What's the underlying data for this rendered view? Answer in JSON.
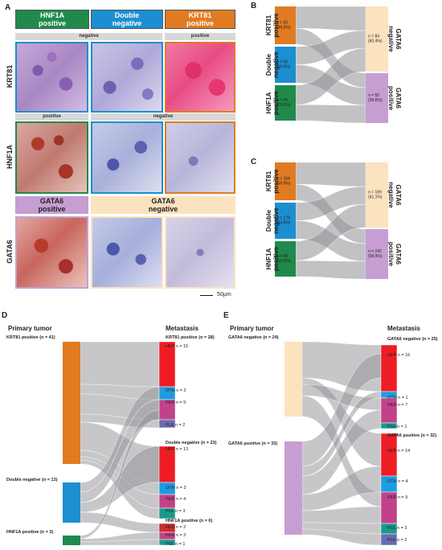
{
  "panel_A": {
    "label": "A",
    "headers": [
      "HNF1A\npositive",
      "Double\nnegative",
      "KRT81\npositive"
    ],
    "bar_negative": "negative",
    "bar_positive": "positive",
    "bar_positive_2": "positive",
    "bar_negative_2": "negative",
    "row_labels": [
      "KRT81",
      "HNF1A",
      "GATA6"
    ],
    "gata6_positive": "GATA6\npositive",
    "gata6_negative": "GATA6\nnegative",
    "scale": "50µm"
  },
  "panel_B": {
    "label": "B",
    "left": [
      {
        "name": "KRT81\npositive",
        "text": "n = 50\n(36.0%)",
        "color": "#e07b22"
      },
      {
        "name": "Double\nnegative",
        "text": "n = 50\n(36.0%)",
        "color": "#1b8fd0"
      },
      {
        "name": "HNF1A\npositive",
        "text": "n = 39\n(28.0%)",
        "color": "#1f8a4c"
      }
    ],
    "right": [
      {
        "name": "GATA6\nnegative",
        "text": "n = 84\n(60.4%)",
        "color": "#fbe3c0"
      },
      {
        "name": "GATA6\npositive",
        "text": "n = 55\n(39.6%)",
        "color": "#c69ed2"
      }
    ]
  },
  "panel_C": {
    "label": "C",
    "left": [
      {
        "name": "KRT81\npositive",
        "text": "n = 164\n(39.9%)",
        "color": "#e07b22"
      },
      {
        "name": "Double\nnegative",
        "text": "n = 179\n(43.6%)",
        "color": "#1b8fd0"
      },
      {
        "name": "HNF1A\npositive",
        "text": "n = 68\n(16.5%)",
        "color": "#1f8a4c"
      }
    ],
    "right": [
      {
        "name": "GATA6\nnegative",
        "text": "n = 169\n(41.1%)",
        "color": "#fbe3c0"
      },
      {
        "name": "GATA6\npositive",
        "text": "n = 242\n(58.9%)",
        "color": "#c69ed2"
      }
    ]
  },
  "panel_D": {
    "label": "D",
    "left_title": "Primary tumor",
    "right_title": "Metastasis",
    "left_groups": [
      "KRT81 positive (n = 41)",
      "Double negative (n = 13)",
      "HNF1A positive (n = 3)"
    ],
    "right_groups": [
      "KRT81 positive (n = 28)",
      "Double negative (n = 23)",
      "HNF1A positive (n = 6)"
    ],
    "sites": [
      "HEP n = 15",
      "OTH n = 2",
      "PER n = 9",
      "PLE n = 2",
      "HEP n = 13",
      "OTH n = 3",
      "PER n = 4",
      "PUL n = 3",
      "HEP n = 2",
      "PER n = 3",
      "PUL n = 1"
    ]
  },
  "panel_E": {
    "label": "E",
    "left_title": "Primary tumor",
    "right_title": "Metastasis",
    "left_groups": [
      "GATA6 negative (n = 24)",
      "GATA6 positive (n = 33)"
    ],
    "right_groups": [
      "GATA6 negative (n = 25)",
      "GATA6 positive (n = 32)"
    ],
    "sites": [
      "HEP n = 16",
      "OTH n = 1",
      "PER n = 7",
      "PUL n = 1",
      "HEP n = 14",
      "OTH n = 4",
      "PER n = 9",
      "PUL n = 3",
      "PLE n = 2"
    ]
  },
  "colors": {
    "krt81": "#e07b22",
    "double": "#1b8fd0",
    "hnf1a": "#1f8a4c",
    "gata_neg": "#fbe3c0",
    "gata_pos": "#c69ed2",
    "flow": "#8f8f96",
    "hep": "#ee1c25",
    "oth": "#1f9be0",
    "per": "#c2428a",
    "ple": "#6b6bb0",
    "pul": "#1a9a8c"
  }
}
